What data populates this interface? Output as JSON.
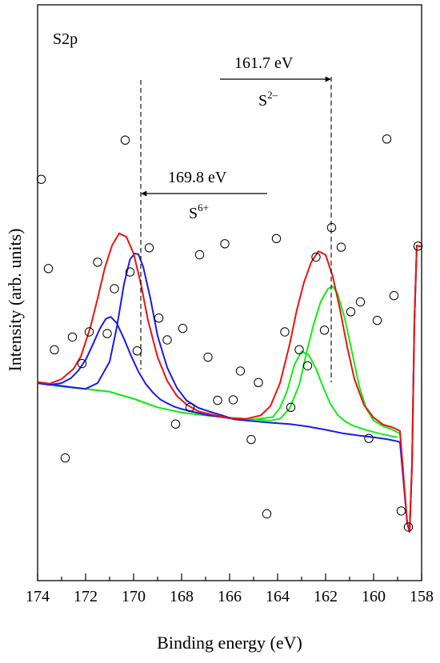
{
  "chart_data": {
    "type": "scatter",
    "panel_label": "S2p",
    "xlabel": "Binding energy (eV)",
    "ylabel": "Intensity (arb. units)",
    "xlim": [
      174,
      158
    ],
    "x_reversed": true,
    "ylim": [
      0,
      1
    ],
    "x_ticks": [
      174,
      172,
      170,
      168,
      166,
      164,
      162,
      160,
      158
    ],
    "y_ticks_labeled": false,
    "grid": false,
    "colors": {
      "envelope": "#ee1111",
      "s6_components": "#1a1aee",
      "s2_components": "#11ee11",
      "points": "#000000"
    },
    "annotations": [
      {
        "value": "161.7 eV",
        "species": "S",
        "charge": "2–",
        "x": 161.7
      },
      {
        "value": "169.8 eV",
        "species": "S",
        "charge": "6+",
        "x": 169.8
      }
    ],
    "points": [
      [
        173.85,
        0.697
      ],
      [
        173.55,
        0.542
      ],
      [
        173.3,
        0.401
      ],
      [
        172.85,
        0.213
      ],
      [
        172.55,
        0.423
      ],
      [
        172.15,
        0.377
      ],
      [
        171.85,
        0.432
      ],
      [
        171.5,
        0.553
      ],
      [
        171.1,
        0.429
      ],
      [
        170.8,
        0.507
      ],
      [
        170.35,
        0.765
      ],
      [
        170.15,
        0.536
      ],
      [
        169.85,
        0.399
      ],
      [
        169.35,
        0.578
      ],
      [
        168.95,
        0.456
      ],
      [
        168.6,
        0.418
      ],
      [
        168.25,
        0.272
      ],
      [
        167.95,
        0.438
      ],
      [
        167.65,
        0.301
      ],
      [
        167.25,
        0.566
      ],
      [
        166.9,
        0.388
      ],
      [
        166.5,
        0.313
      ],
      [
        166.2,
        0.585
      ],
      [
        165.85,
        0.314
      ],
      [
        165.55,
        0.364
      ],
      [
        165.1,
        0.245
      ],
      [
        164.8,
        0.344
      ],
      [
        164.45,
        0.116
      ],
      [
        164.05,
        0.594
      ],
      [
        163.7,
        0.432
      ],
      [
        163.45,
        0.301
      ],
      [
        163.1,
        0.401
      ],
      [
        162.75,
        0.373
      ],
      [
        162.4,
        0.562
      ],
      [
        162.05,
        0.435
      ],
      [
        161.75,
        0.613
      ],
      [
        161.35,
        0.579
      ],
      [
        160.95,
        0.467
      ],
      [
        160.55,
        0.484
      ],
      [
        160.2,
        0.247
      ],
      [
        159.85,
        0.452
      ],
      [
        159.45,
        0.767
      ],
      [
        159.15,
        0.495
      ],
      [
        158.85,
        0.121
      ],
      [
        158.55,
        0.093
      ],
      [
        158.15,
        0.581
      ]
    ],
    "series": [
      {
        "role": "envelope",
        "color": "#ee1111",
        "x": [
          174.0,
          173.5,
          173.0,
          172.5,
          172.2,
          171.8,
          171.5,
          171.2,
          170.9,
          170.6,
          170.3,
          170.0,
          169.7,
          169.4,
          169.0,
          168.6,
          168.2,
          167.8,
          167.3,
          166.7,
          166.0,
          165.3,
          164.7,
          164.3,
          163.9,
          163.5,
          163.2,
          162.9,
          162.6,
          162.3,
          162.0,
          161.7,
          161.4,
          161.1,
          160.8,
          160.4,
          160.0,
          159.6,
          159.2,
          158.9,
          158.6,
          158.5,
          158.4,
          158.3,
          158.2,
          158.0
        ],
        "y": [
          0.345,
          0.342,
          0.35,
          0.368,
          0.389,
          0.44,
          0.49,
          0.543,
          0.582,
          0.603,
          0.597,
          0.568,
          0.516,
          0.452,
          0.388,
          0.347,
          0.321,
          0.306,
          0.294,
          0.288,
          0.282,
          0.281,
          0.287,
          0.303,
          0.343,
          0.41,
          0.47,
          0.518,
          0.553,
          0.572,
          0.566,
          0.528,
          0.471,
          0.406,
          0.35,
          0.305,
          0.283,
          0.271,
          0.266,
          0.26,
          0.1,
          0.085,
          0.2,
          0.45,
          0.582,
          0.58
        ]
      },
      {
        "role": "S6+ component 1",
        "color": "#1a1aee",
        "x": [
          174.0,
          173.5,
          173.0,
          172.6,
          172.3,
          172.0,
          171.7,
          171.4,
          171.15,
          170.95,
          170.7,
          170.4,
          170.1,
          169.8,
          169.5,
          169.2,
          168.9,
          168.6,
          168.3,
          168.0,
          167.5,
          167.0,
          166.5,
          166.0
        ],
        "y": [
          0.343,
          0.34,
          0.343,
          0.352,
          0.365,
          0.383,
          0.41,
          0.438,
          0.455,
          0.458,
          0.447,
          0.42,
          0.39,
          0.363,
          0.342,
          0.327,
          0.315,
          0.308,
          0.302,
          0.298,
          0.293,
          0.288,
          0.285,
          0.282
        ]
      },
      {
        "role": "S6+ component 2",
        "color": "#1a1aee",
        "x": [
          174.0,
          173.3,
          172.6,
          172.0,
          171.5,
          171.0,
          170.7,
          170.4,
          170.15,
          169.95,
          169.8,
          169.6,
          169.3,
          169.0,
          168.6,
          168.2,
          167.8,
          167.3,
          166.8,
          166.3,
          165.8,
          165.0,
          164.2,
          163.5,
          162.8,
          162.0,
          161.3,
          160.6,
          160.0,
          159.5,
          159.0,
          158.9,
          158.6,
          158.5,
          158.4,
          158.3,
          158.2,
          158.0
        ],
        "y": [
          0.343,
          0.34,
          0.336,
          0.333,
          0.343,
          0.38,
          0.44,
          0.515,
          0.558,
          0.568,
          0.567,
          0.545,
          0.49,
          0.425,
          0.37,
          0.335,
          0.313,
          0.3,
          0.293,
          0.287,
          0.28,
          0.277,
          0.274,
          0.272,
          0.268,
          0.262,
          0.256,
          0.252,
          0.249,
          0.246,
          0.242,
          0.24,
          0.1,
          0.085,
          0.2,
          0.45,
          0.582,
          0.58
        ]
      },
      {
        "role": "S2- component 1",
        "color": "#11ee11",
        "x": [
          174.0,
          173.0,
          172.0,
          171.0,
          170.0,
          169.0,
          168.0,
          167.0,
          166.0,
          165.0,
          164.2,
          163.9,
          163.6,
          163.3,
          163.0,
          162.7,
          162.4,
          162.1,
          161.8,
          161.5,
          161.2,
          160.9,
          160.5,
          160.0,
          159.5,
          159.0
        ],
        "y": [
          0.343,
          0.337,
          0.333,
          0.328,
          0.316,
          0.301,
          0.292,
          0.287,
          0.283,
          0.28,
          0.284,
          0.3,
          0.33,
          0.375,
          0.398,
          0.392,
          0.368,
          0.336,
          0.307,
          0.288,
          0.277,
          0.27,
          0.264,
          0.258,
          0.253,
          0.249
        ]
      },
      {
        "role": "S2- component 2",
        "color": "#11ee11",
        "x": [
          174.0,
          173.0,
          172.0,
          171.0,
          170.0,
          169.0,
          168.0,
          167.0,
          166.0,
          165.0,
          164.3,
          163.9,
          163.5,
          163.1,
          162.8,
          162.5,
          162.2,
          161.9,
          161.7,
          161.5,
          161.2,
          160.9,
          160.6,
          160.3,
          160.0,
          159.6,
          159.2,
          158.9,
          158.6,
          158.5,
          158.4,
          158.3,
          158.2,
          158.0
        ],
        "y": [
          0.343,
          0.337,
          0.333,
          0.328,
          0.316,
          0.301,
          0.292,
          0.287,
          0.283,
          0.28,
          0.278,
          0.281,
          0.299,
          0.34,
          0.395,
          0.445,
          0.485,
          0.507,
          0.511,
          0.498,
          0.455,
          0.397,
          0.338,
          0.298,
          0.278,
          0.268,
          0.262,
          0.255,
          0.1,
          0.085,
          0.2,
          0.45,
          0.582,
          0.58
        ]
      }
    ]
  }
}
